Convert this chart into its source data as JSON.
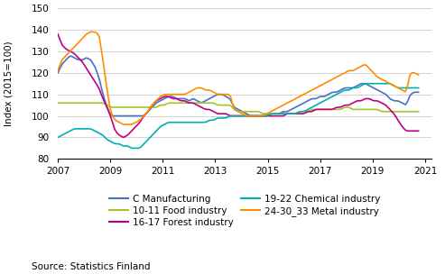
{
  "title": "",
  "ylabel": "Index (2015=100)",
  "source": "Source: Statistics Finland",
  "ylim": [
    80,
    150
  ],
  "yticks": [
    80,
    90,
    100,
    110,
    120,
    130,
    140,
    150
  ],
  "xlim_start": 2007.0,
  "xlim_end": 2021.25,
  "xtick_years": [
    2007,
    2009,
    2011,
    2013,
    2015,
    2017,
    2019,
    2021
  ],
  "colors": {
    "C Manufacturing": "#4472C4",
    "10-11 Food industry": "#9DC62D",
    "16-17 Forest industry": "#C00080",
    "19-22 Chemical industry": "#00B0B0",
    "24-30_33 Metal industry": "#FF8C00"
  },
  "legend_order": [
    "C Manufacturing",
    "10-11 Food industry",
    "16-17 Forest industry",
    "19-22 Chemical industry",
    "24-30_33 Metal industry"
  ],
  "background_color": "#ffffff",
  "grid_color": "#cccccc",
  "series": {
    "C Manufacturing": [
      120,
      124,
      126,
      128,
      127,
      126,
      126,
      127,
      126,
      123,
      118,
      110,
      104,
      100,
      100,
      100,
      100,
      100,
      100,
      100,
      100,
      100,
      102,
      104,
      106,
      107,
      108,
      109,
      109,
      108,
      108,
      108,
      107,
      108,
      107,
      106,
      107,
      108,
      109,
      110,
      110,
      109,
      108,
      104,
      103,
      102,
      101,
      100,
      100,
      100,
      100,
      100,
      101,
      101,
      101,
      102,
      102,
      103,
      104,
      105,
      106,
      107,
      108,
      108,
      109,
      109,
      110,
      111,
      111,
      112,
      113,
      113,
      113,
      114,
      115,
      115,
      114,
      113,
      112,
      111,
      110,
      108,
      107,
      107,
      106,
      105,
      110,
      111,
      111
    ],
    "10-11 Food industry": [
      106,
      106,
      106,
      106,
      106,
      106,
      106,
      106,
      106,
      106,
      106,
      106,
      105,
      104,
      104,
      104,
      104,
      104,
      104,
      104,
      104,
      104,
      104,
      104,
      104,
      105,
      105,
      106,
      106,
      106,
      106,
      106,
      106,
      106,
      106,
      106,
      106,
      106,
      106,
      105,
      105,
      105,
      105,
      103,
      102,
      102,
      102,
      102,
      102,
      102,
      101,
      101,
      101,
      101,
      101,
      101,
      101,
      101,
      101,
      102,
      102,
      102,
      103,
      103,
      103,
      103,
      103,
      103,
      103,
      103,
      104,
      104,
      103,
      103,
      103,
      103,
      103,
      103,
      103,
      102,
      102,
      102,
      102,
      102,
      102,
      102,
      102,
      102,
      102
    ],
    "16-17 Forest industry": [
      138,
      133,
      131,
      130,
      129,
      127,
      125,
      122,
      119,
      116,
      113,
      108,
      104,
      99,
      93,
      91,
      90,
      91,
      93,
      95,
      97,
      100,
      102,
      105,
      107,
      108,
      109,
      109,
      108,
      108,
      107,
      107,
      106,
      106,
      105,
      104,
      103,
      103,
      102,
      101,
      101,
      101,
      100,
      100,
      100,
      100,
      100,
      100,
      100,
      100,
      100,
      100,
      100,
      100,
      100,
      100,
      101,
      101,
      101,
      101,
      101,
      102,
      102,
      103,
      103,
      103,
      103,
      103,
      104,
      104,
      105,
      105,
      106,
      107,
      107,
      108,
      108,
      107,
      107,
      106,
      105,
      103,
      101,
      98,
      95,
      93,
      93,
      93,
      93
    ],
    "19-22 Chemical industry": [
      90,
      91,
      92,
      93,
      94,
      94,
      94,
      94,
      94,
      93,
      92,
      91,
      89,
      88,
      87,
      87,
      86,
      86,
      85,
      85,
      85,
      87,
      89,
      91,
      93,
      95,
      96,
      97,
      97,
      97,
      97,
      97,
      97,
      97,
      97,
      97,
      97,
      98,
      98,
      99,
      99,
      99,
      100,
      100,
      100,
      100,
      100,
      100,
      100,
      100,
      100,
      100,
      101,
      101,
      101,
      101,
      101,
      101,
      101,
      102,
      102,
      103,
      104,
      105,
      106,
      107,
      108,
      109,
      110,
      111,
      112,
      112,
      113,
      113,
      114,
      115,
      115,
      115,
      115,
      115,
      115,
      115,
      114,
      113,
      113,
      113,
      113,
      113,
      113
    ],
    "24-30_33 Metal industry": [
      121,
      126,
      128,
      130,
      132,
      134,
      136,
      138,
      139,
      139,
      138,
      126,
      112,
      101,
      98,
      97,
      96,
      96,
      96,
      97,
      98,
      100,
      102,
      105,
      107,
      109,
      110,
      110,
      110,
      110,
      110,
      110,
      111,
      112,
      113,
      113,
      112,
      112,
      111,
      110,
      110,
      110,
      110,
      103,
      102,
      101,
      100,
      100,
      100,
      100,
      100,
      101,
      102,
      103,
      104,
      105,
      106,
      107,
      108,
      109,
      110,
      111,
      112,
      113,
      114,
      115,
      116,
      117,
      118,
      119,
      120,
      121,
      121,
      122,
      123,
      124,
      122,
      120,
      118,
      117,
      116,
      115,
      114,
      113,
      112,
      111,
      120,
      120,
      119
    ]
  }
}
